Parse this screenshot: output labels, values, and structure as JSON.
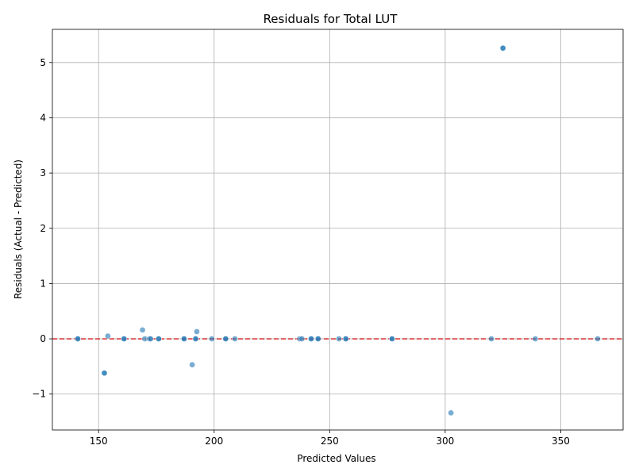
{
  "chart_data": {
    "type": "scatter",
    "title": "Residuals for Total LUT",
    "xlabel": "Predicted Values",
    "ylabel": "Residuals (Actual - Predicted)",
    "xlim": [
      130,
      377
    ],
    "ylim": [
      -1.65,
      5.6
    ],
    "xticks": [
      150,
      200,
      250,
      300,
      350
    ],
    "yticks": [
      -1,
      0,
      1,
      2,
      3,
      4,
      5
    ],
    "xtick_labels": [
      "150",
      "200",
      "250",
      "300",
      "350"
    ],
    "ytick_labels": [
      "−1",
      "0",
      "1",
      "2",
      "3",
      "4",
      "5"
    ],
    "grid": true,
    "point_color": "#1f77b4",
    "reference_line": {
      "y": 0,
      "color": "#d62728",
      "style": "dashed"
    },
    "points": [
      {
        "x": 141,
        "y": 0.0
      },
      {
        "x": 141,
        "y": 0.0
      },
      {
        "x": 152.5,
        "y": -0.62
      },
      {
        "x": 152.5,
        "y": -0.62
      },
      {
        "x": 154,
        "y": 0.05
      },
      {
        "x": 161,
        "y": 0.0
      },
      {
        "x": 161,
        "y": 0.0
      },
      {
        "x": 169,
        "y": 0.16
      },
      {
        "x": 170,
        "y": 0.0
      },
      {
        "x": 172,
        "y": 0.0
      },
      {
        "x": 172.5,
        "y": 0.0
      },
      {
        "x": 176,
        "y": 0.0
      },
      {
        "x": 176,
        "y": 0.0
      },
      {
        "x": 187,
        "y": 0.0
      },
      {
        "x": 187,
        "y": 0.0
      },
      {
        "x": 190.5,
        "y": -0.47
      },
      {
        "x": 192,
        "y": 0.0
      },
      {
        "x": 192,
        "y": 0.0
      },
      {
        "x": 192.5,
        "y": 0.13
      },
      {
        "x": 199,
        "y": 0.0
      },
      {
        "x": 205,
        "y": 0.0
      },
      {
        "x": 205,
        "y": 0.0
      },
      {
        "x": 209,
        "y": 0.0
      },
      {
        "x": 237,
        "y": 0.0
      },
      {
        "x": 238,
        "y": 0.0
      },
      {
        "x": 242,
        "y": 0.0
      },
      {
        "x": 242,
        "y": 0.0
      },
      {
        "x": 245,
        "y": 0.0
      },
      {
        "x": 245,
        "y": 0.0
      },
      {
        "x": 254,
        "y": 0.0
      },
      {
        "x": 257,
        "y": 0.0
      },
      {
        "x": 257,
        "y": 0.0
      },
      {
        "x": 277,
        "y": 0.0
      },
      {
        "x": 277,
        "y": 0.0
      },
      {
        "x": 302.5,
        "y": -1.34
      },
      {
        "x": 320,
        "y": 0.0
      },
      {
        "x": 325,
        "y": 5.26
      },
      {
        "x": 325,
        "y": 5.26
      },
      {
        "x": 339,
        "y": 0.0
      },
      {
        "x": 366,
        "y": 0.0
      }
    ]
  }
}
